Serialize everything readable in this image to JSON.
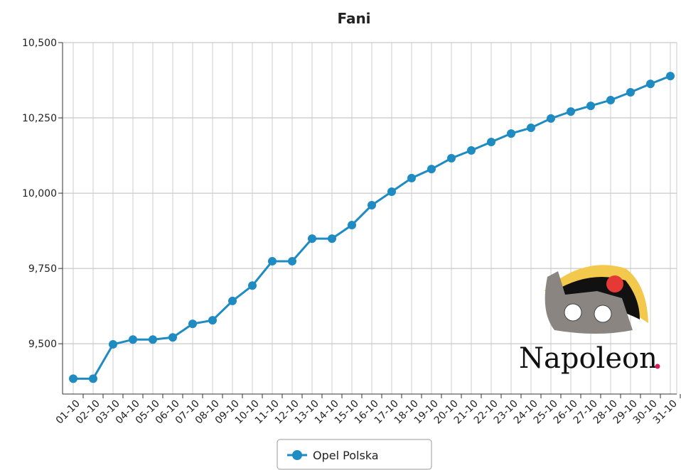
{
  "chart_data": {
    "type": "line",
    "title": "Fani",
    "categories": [
      "01-10",
      "02-10",
      "03-10",
      "04-10",
      "05-10",
      "06-10",
      "07-10",
      "08-10",
      "09-10",
      "10-10",
      "11-10",
      "12-10",
      "13-10",
      "14-10",
      "15-10",
      "16-10",
      "17-10",
      "18-10",
      "19-10",
      "20-10",
      "21-10",
      "22-10",
      "23-10",
      "24-10",
      "25-10",
      "26-10",
      "27-10",
      "28-10",
      "29-10",
      "30-10",
      "31-10"
    ],
    "series": [
      {
        "name": "Opel Polska",
        "color": "#1e8bc3",
        "values": [
          9384,
          9384,
          9498,
          9514,
          9514,
          9521,
          9566,
          9578,
          9642,
          9693,
          9774,
          9774,
          9849,
          9849,
          9894,
          9960,
          10005,
          10050,
          10080,
          10116,
          10142,
          10170,
          10198,
          10217,
          10248,
          10271,
          10290,
          10309,
          10335,
          10363,
          10389
        ]
      }
    ],
    "ylim": [
      9333,
      10500
    ],
    "yticks": [
      {
        "value": 9500,
        "label": "9,500"
      },
      {
        "value": 9750,
        "label": "9,750"
      },
      {
        "value": 10000,
        "label": "10,000"
      },
      {
        "value": 10250,
        "label": "10,250"
      },
      {
        "value": 10500,
        "label": "10,500"
      }
    ],
    "grid": true,
    "legend": "bottom",
    "logo": "Napoleon"
  }
}
